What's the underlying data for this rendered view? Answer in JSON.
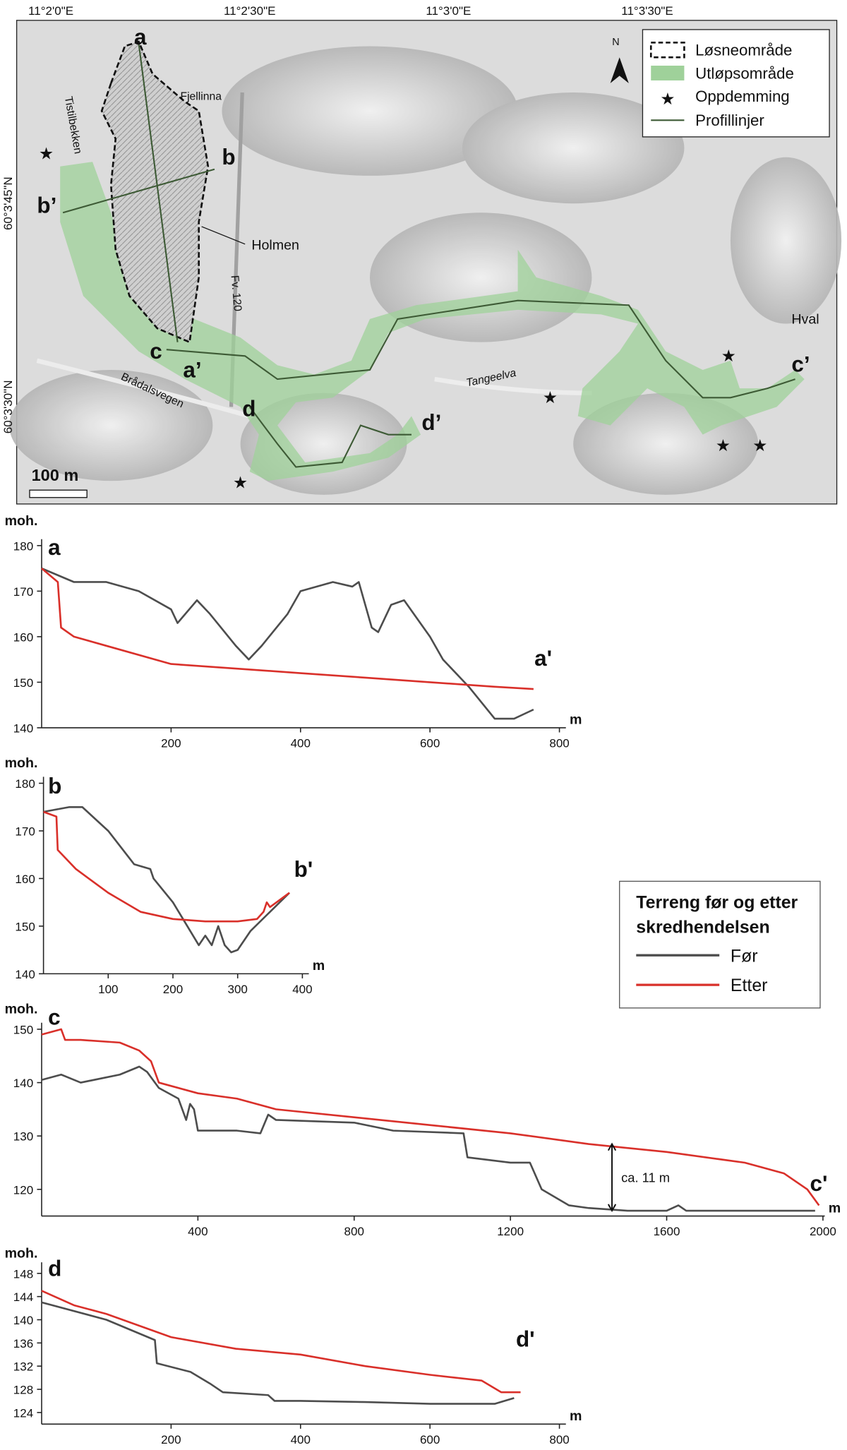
{
  "map": {
    "coords": {
      "top": [
        "11°2'0\"E",
        "11°2'30\"E",
        "11°3'0\"E",
        "11°3'30\"E"
      ],
      "left": [
        "60°3'45\"N",
        "60°3'30\"N"
      ]
    },
    "places": [
      "Tistilbekken",
      "Fjellinna",
      "Holmen",
      "Fv. 120",
      "Hval",
      "Brådalsvegen",
      "Tangeelva"
    ],
    "profile_letters": [
      "a",
      "b",
      "b’",
      "c",
      "a’",
      "d",
      "d’",
      "c’"
    ],
    "legend": [
      "Løsneområde",
      "Utløpsområde",
      "Oppdemming",
      "Profillinjer"
    ],
    "scale_bar": "100 m",
    "north": "N"
  },
  "chart_data": [
    {
      "type": "line",
      "y_label": "moh.",
      "x_label": "m",
      "start_label": "a",
      "end_label": "a'",
      "xlim": [
        0,
        800
      ],
      "ylim": [
        140,
        180
      ],
      "xticks": [
        200,
        400,
        600,
        800
      ],
      "yticks": [
        140,
        150,
        160,
        170,
        180
      ],
      "series": [
        {
          "color": "#4d4d4d",
          "x": [
            0,
            50,
            100,
            150,
            200,
            210,
            240,
            260,
            300,
            320,
            340,
            380,
            400,
            450,
            480,
            490,
            510,
            520,
            540,
            560,
            600,
            620,
            660,
            700,
            730,
            760
          ],
          "values": [
            175,
            172,
            172,
            170,
            166,
            163,
            168,
            165,
            158,
            155,
            158,
            165,
            170,
            172,
            171,
            172,
            162,
            161,
            167,
            168,
            160,
            155,
            149,
            142,
            142,
            144
          ]
        },
        {
          "color": "#d9302a",
          "x": [
            0,
            25,
            30,
            50,
            100,
            200,
            300,
            400,
            500,
            600,
            700,
            760
          ],
          "values": [
            175,
            172,
            162,
            160,
            158,
            154,
            153,
            152,
            151,
            150,
            149,
            148.5
          ]
        }
      ]
    },
    {
      "type": "line",
      "y_label": "moh.",
      "x_label": "m",
      "start_label": "b",
      "end_label": "b'",
      "xlim": [
        0,
        400
      ],
      "ylim": [
        140,
        180
      ],
      "xticks": [
        100,
        200,
        300,
        400
      ],
      "yticks": [
        140,
        150,
        160,
        170,
        180
      ],
      "legend_title": [
        "Terreng før og etter",
        "skredhendelsen"
      ],
      "series": [
        {
          "name": "Før",
          "color": "#4d4d4d",
          "x": [
            0,
            40,
            60,
            100,
            140,
            165,
            170,
            200,
            240,
            250,
            260,
            270,
            280,
            290,
            300,
            320,
            350,
            380
          ],
          "values": [
            174,
            175,
            175,
            170,
            163,
            162,
            160,
            155,
            146,
            148,
            146,
            150,
            146,
            144.5,
            145,
            149,
            153,
            157
          ]
        },
        {
          "name": "Etter",
          "color": "#d9302a",
          "x": [
            0,
            20,
            22,
            50,
            100,
            150,
            200,
            250,
            300,
            330,
            340,
            345,
            350,
            380
          ],
          "values": [
            174,
            173,
            166,
            162,
            157,
            153,
            151.5,
            151,
            151,
            151.5,
            153,
            155,
            154,
            157
          ]
        }
      ]
    },
    {
      "type": "line",
      "y_label": "moh.",
      "x_label": "m",
      "start_label": "c",
      "end_label": "c'",
      "xlim": [
        0,
        2000
      ],
      "ylim": [
        115,
        150
      ],
      "xticks": [
        400,
        800,
        1200,
        1600,
        2000
      ],
      "yticks": [
        120,
        130,
        140,
        150
      ],
      "annotation": {
        "text": "ca. 11 m",
        "x": 1460,
        "y_from": 116,
        "y_to": 128.5
      },
      "series": [
        {
          "color": "#4d4d4d",
          "x": [
            0,
            50,
            100,
            200,
            250,
            270,
            300,
            350,
            370,
            380,
            390,
            400,
            500,
            560,
            580,
            600,
            800,
            900,
            1080,
            1090,
            1200,
            1250,
            1280,
            1350,
            1400,
            1500,
            1600,
            1630,
            1650,
            1800,
            1980
          ],
          "values": [
            140.5,
            141.5,
            140,
            141.5,
            143,
            142,
            139,
            137,
            133,
            136,
            135,
            131,
            131,
            130.5,
            134,
            133,
            132.5,
            131,
            130.5,
            126,
            125,
            125,
            120,
            117,
            116.5,
            116,
            116,
            117,
            116,
            116,
            116
          ]
        },
        {
          "color": "#d9302a",
          "x": [
            0,
            50,
            60,
            100,
            200,
            250,
            280,
            300,
            400,
            500,
            600,
            800,
            1000,
            1200,
            1400,
            1600,
            1800,
            1900,
            1960,
            1990
          ],
          "values": [
            149,
            150,
            148,
            148,
            147.5,
            146,
            144,
            140,
            138,
            137,
            135,
            133.5,
            132,
            130.5,
            128.5,
            127,
            125,
            123,
            120,
            117
          ]
        }
      ]
    },
    {
      "type": "line",
      "y_label": "moh.",
      "x_label": "m",
      "start_label": "d",
      "end_label": "d'",
      "xlim": [
        0,
        800
      ],
      "ylim": [
        122,
        148
      ],
      "xticks": [
        200,
        400,
        600,
        800
      ],
      "yticks": [
        124,
        128,
        132,
        136,
        140,
        144,
        148
      ],
      "series": [
        {
          "color": "#4d4d4d",
          "x": [
            0,
            100,
            175,
            178,
            230,
            260,
            280,
            350,
            360,
            400,
            500,
            600,
            700,
            730
          ],
          "values": [
            143,
            140,
            136.5,
            132.5,
            131,
            129,
            127.5,
            127,
            126,
            126,
            125.8,
            125.5,
            125.5,
            126.5
          ]
        },
        {
          "color": "#d9302a",
          "x": [
            0,
            50,
            100,
            200,
            300,
            400,
            500,
            600,
            680,
            710,
            740
          ],
          "values": [
            145,
            142.5,
            141,
            137,
            135,
            134,
            132,
            130.5,
            129.5,
            127.5,
            127.5
          ]
        }
      ]
    }
  ]
}
